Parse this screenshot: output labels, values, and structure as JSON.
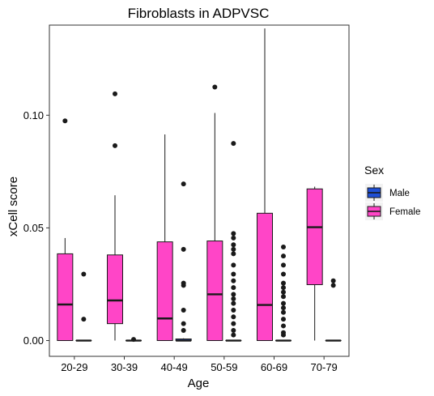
{
  "chart_data": {
    "type": "boxplot",
    "title": "Fibroblasts in ADPVSC",
    "xlabel": "Age",
    "ylabel": "xCell score",
    "categories": [
      "20-29",
      "30-39",
      "40-49",
      "50-59",
      "60-69",
      "70-79"
    ],
    "ylim": [
      -0.007,
      0.14
    ],
    "yticks": [
      0.0,
      0.05,
      0.1
    ],
    "ytick_labels": [
      "0.00",
      "0.05",
      "0.10"
    ],
    "grid": false,
    "legend": {
      "title": "Sex",
      "position": "right",
      "entries": [
        {
          "label": "Male",
          "color": "#1f4fd6"
        },
        {
          "label": "Female",
          "color": "#ff45c7"
        }
      ]
    },
    "series": [
      {
        "name": "Male",
        "color": "#1f4fd6",
        "boxes": [
          {
            "q1": 0,
            "median": 0,
            "q3": 0,
            "whisker_low": 0,
            "whisker_high": 0,
            "outliers": [
              0.0295,
              0.0095
            ]
          },
          {
            "q1": 0,
            "median": 0,
            "q3": 0,
            "whisker_low": 0,
            "whisker_high": 0,
            "outliers": [
              0.0005
            ]
          },
          {
            "q1": 0,
            "median": 0,
            "q3": 0.0007,
            "whisker_low": 0,
            "whisker_high": 0.001,
            "outliers": [
              0.0695,
              0.0405,
              0.0255,
              0.0245,
              0.0135,
              0.0075,
              0.0045
            ]
          },
          {
            "q1": 0,
            "median": 0,
            "q3": 0,
            "whisker_low": 0,
            "whisker_high": 0,
            "outliers": [
              0.0875,
              0.0475,
              0.0455,
              0.0425,
              0.0405,
              0.0385,
              0.0335,
              0.0295,
              0.0265,
              0.0235,
              0.0205,
              0.0185,
              0.0165,
              0.0135,
              0.0105,
              0.0075,
              0.0045,
              0.0025
            ]
          },
          {
            "q1": 0,
            "median": 0,
            "q3": 0,
            "whisker_low": 0,
            "whisker_high": 0,
            "outliers": [
              0.0415,
              0.0375,
              0.0335,
              0.0295,
              0.0255,
              0.0235,
              0.0215,
              0.0195,
              0.0165,
              0.0145,
              0.0125,
              0.0095,
              0.0065,
              0.0035,
              0.0025
            ]
          },
          {
            "q1": 0,
            "median": 0,
            "q3": 0,
            "whisker_low": 0,
            "whisker_high": 0,
            "outliers": [
              0.0265,
              0.0245
            ]
          }
        ]
      },
      {
        "name": "Female",
        "color": "#ff45c7",
        "boxes": [
          {
            "q1": 0,
            "median": 0.016,
            "q3": 0.0385,
            "whisker_low": 0,
            "whisker_high": 0.0455,
            "outliers": [
              0.0975
            ]
          },
          {
            "q1": 0.0075,
            "median": 0.0178,
            "q3": 0.038,
            "whisker_low": 0,
            "whisker_high": 0.0645,
            "outliers": [
              0.1095,
              0.0865
            ]
          },
          {
            "q1": 0,
            "median": 0.0098,
            "q3": 0.0438,
            "whisker_low": 0,
            "whisker_high": 0.0915,
            "outliers": []
          },
          {
            "q1": 0,
            "median": 0.0205,
            "q3": 0.0442,
            "whisker_low": 0,
            "whisker_high": 0.101,
            "outliers": [
              0.1125
            ]
          },
          {
            "q1": 0,
            "median": 0.0158,
            "q3": 0.0565,
            "whisker_low": 0,
            "whisker_high": 0.1385,
            "outliers": []
          },
          {
            "q1": 0.0248,
            "median": 0.0503,
            "q3": 0.0673,
            "whisker_low": 0,
            "whisker_high": 0.0683,
            "outliers": []
          }
        ]
      }
    ]
  }
}
